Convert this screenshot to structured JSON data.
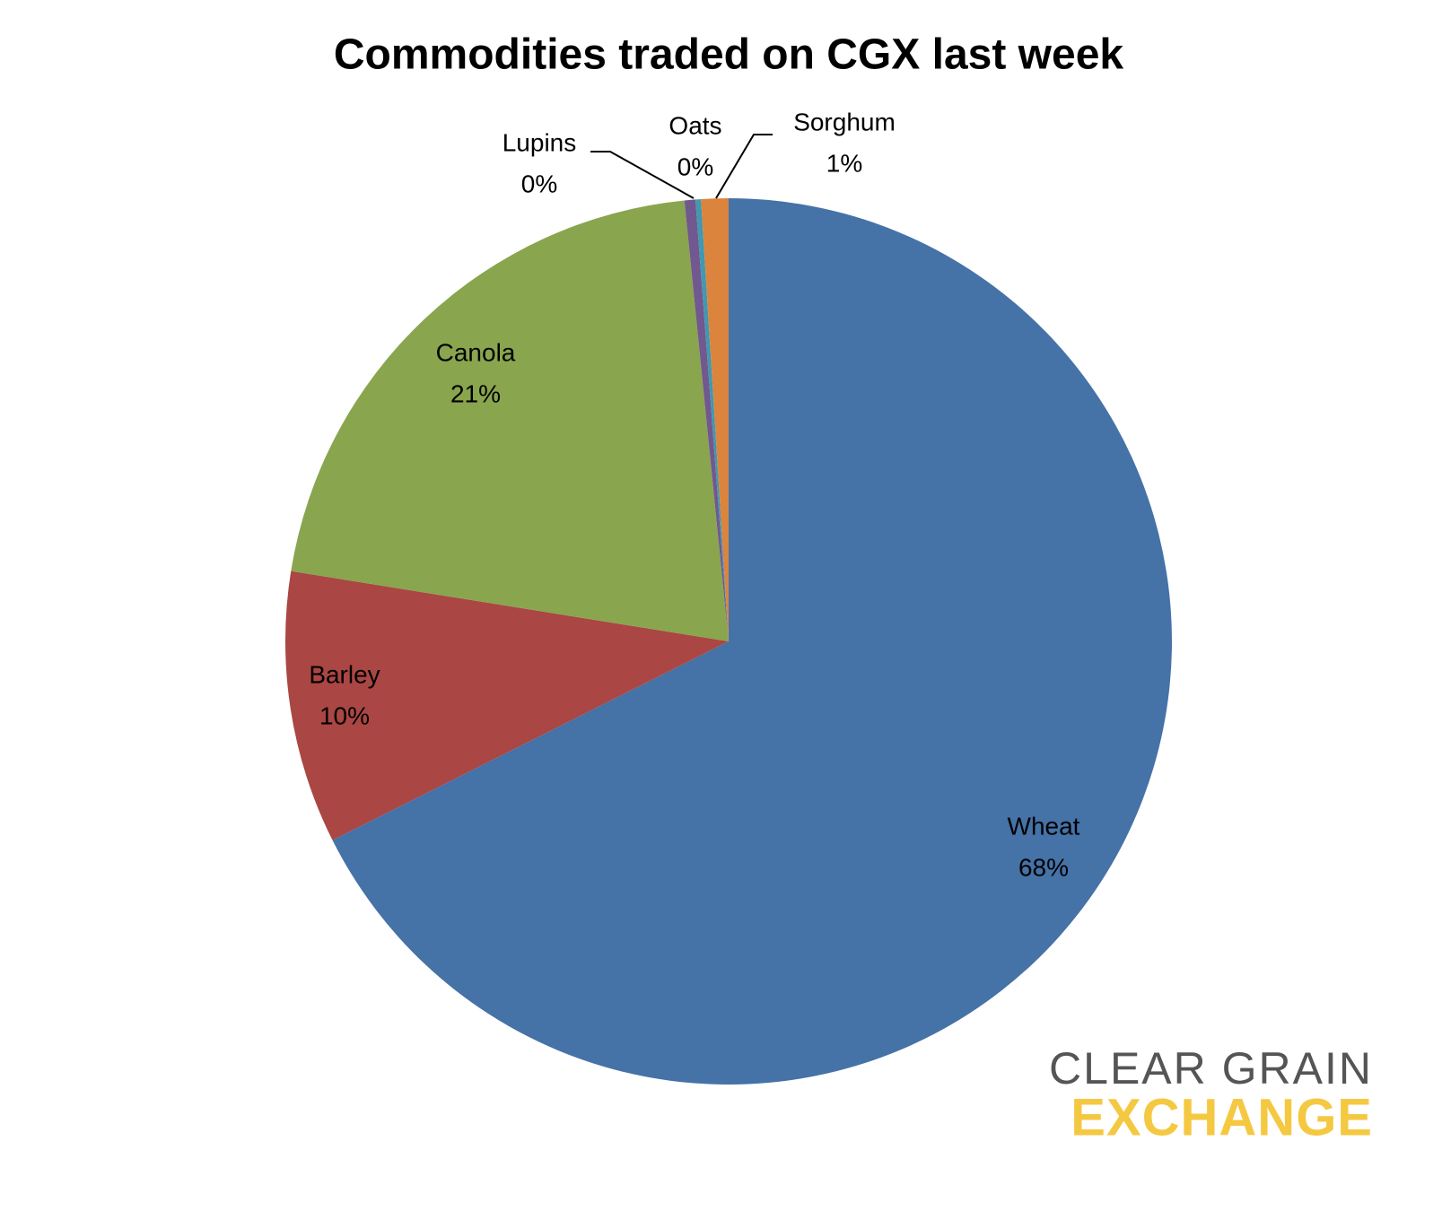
{
  "chart_data": {
    "type": "pie",
    "title": "Commodities traded on CGX last week",
    "categories": [
      "Wheat",
      "Barley",
      "Canola",
      "Lupins",
      "Oats",
      "Sorghum"
    ],
    "values": [
      68,
      10,
      21,
      0.4,
      0.2,
      1
    ],
    "value_labels": [
      "68%",
      "10%",
      "21%",
      "0%",
      "0%",
      "1%"
    ],
    "colors": [
      "#4572a7",
      "#aa4643",
      "#89a54e",
      "#71588f",
      "#4198af",
      "#db843d"
    ]
  },
  "logo": {
    "line1": "CLEAR GRAIN",
    "line2": "EXCHANGE"
  }
}
